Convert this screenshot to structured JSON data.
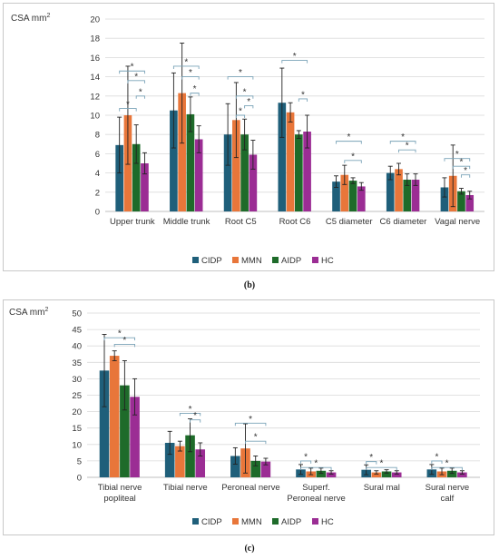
{
  "colors": {
    "CIDP": "#1f5f7a",
    "MMN": "#e8763a",
    "AIDP": "#1e6b2a",
    "HC": "#9b2d94",
    "bracket": "#7aa3b8",
    "grid": "#d9d9d9"
  },
  "panels": [
    {
      "id": "b",
      "caption": "(b)"
    },
    {
      "id": "c",
      "caption": "(c)"
    }
  ],
  "chart_data": [
    {
      "type": "bar",
      "ylabel_main": "CSA mm",
      "ylabel_sup": "2",
      "ylim": [
        0,
        20
      ],
      "yticks": [
        0,
        2,
        4,
        6,
        8,
        10,
        12,
        14,
        16,
        18,
        20
      ],
      "grid": true,
      "legend_position": "bottom",
      "categories": [
        [
          "Upper trunk"
        ],
        [
          "Middle trunk"
        ],
        [
          "Root C5"
        ],
        [
          "Root C6"
        ],
        [
          "C5 diameter"
        ],
        [
          "C6 diameter"
        ],
        [
          "Vagal nerve"
        ]
      ],
      "series": [
        {
          "name": "CIDP",
          "values": [
            6.9,
            10.5,
            8.0,
            11.3,
            3.1,
            4.0,
            2.5
          ],
          "errors": [
            2.9,
            3.9,
            3.2,
            3.6,
            0.6,
            0.7,
            1.0
          ]
        },
        {
          "name": "MMN",
          "values": [
            10.0,
            12.3,
            9.5,
            10.3,
            3.8,
            4.4,
            3.7
          ],
          "errors": [
            5.1,
            5.2,
            3.9,
            1.0,
            1.0,
            0.6,
            3.2
          ]
        },
        {
          "name": "AIDP",
          "values": [
            7.0,
            10.1,
            8.0,
            8.0,
            3.2,
            3.3,
            2.1
          ],
          "errors": [
            2.0,
            1.8,
            1.6,
            0.4,
            0.3,
            0.6,
            0.3
          ]
        },
        {
          "name": "HC",
          "values": [
            5.0,
            7.5,
            5.9,
            8.3,
            2.6,
            3.3,
            1.7
          ],
          "errors": [
            1.1,
            1.4,
            1.5,
            1.7,
            0.4,
            0.6,
            0.4
          ]
        }
      ],
      "brackets": [
        {
          "cat": 0,
          "from": 0,
          "to": 3,
          "y": 14.6,
          "label": "*"
        },
        {
          "cat": 0,
          "from": 1,
          "to": 3,
          "y": 13.6,
          "label": "*"
        },
        {
          "cat": 0,
          "from": 2,
          "to": 3,
          "y": 12.0,
          "label": "*"
        },
        {
          "cat": 0,
          "from": 0,
          "to": 2,
          "y": 10.7,
          "label": "*"
        },
        {
          "cat": 1,
          "from": 0,
          "to": 3,
          "y": 15.1,
          "label": "*"
        },
        {
          "cat": 1,
          "from": 1,
          "to": 3,
          "y": 14.0,
          "label": "*"
        },
        {
          "cat": 1,
          "from": 2,
          "to": 3,
          "y": 12.3,
          "label": "*"
        },
        {
          "cat": 2,
          "from": 0,
          "to": 3,
          "y": 14.0,
          "label": "*"
        },
        {
          "cat": 2,
          "from": 1,
          "to": 3,
          "y": 12.0,
          "label": "*"
        },
        {
          "cat": 2,
          "from": 2,
          "to": 3,
          "y": 11.0,
          "label": "*"
        },
        {
          "cat": 2,
          "from": 1,
          "to": 2,
          "y": 10.0,
          "label": "*"
        },
        {
          "cat": 3,
          "from": 0,
          "to": 3,
          "y": 15.7,
          "label": "*"
        },
        {
          "cat": 3,
          "from": 2,
          "to": 3,
          "y": 11.7,
          "label": "*"
        },
        {
          "cat": 4,
          "from": 0,
          "to": 3,
          "y": 7.3,
          "label": "*"
        },
        {
          "cat": 4,
          "from": 1,
          "to": 3,
          "y": 5.3,
          "label": "*"
        },
        {
          "cat": 5,
          "from": 0,
          "to": 3,
          "y": 7.3,
          "label": "*"
        },
        {
          "cat": 5,
          "from": 1,
          "to": 3,
          "y": 6.4,
          "label": "*"
        },
        {
          "cat": 6,
          "from": 0,
          "to": 3,
          "y": 5.5,
          "label": "*"
        },
        {
          "cat": 6,
          "from": 1,
          "to": 3,
          "y": 4.7,
          "label": "*"
        },
        {
          "cat": 6,
          "from": 2,
          "to": 3,
          "y": 3.8,
          "label": "*"
        }
      ]
    },
    {
      "type": "bar",
      "ylabel_main": "CSA mm",
      "ylabel_sup": "2",
      "ylim": [
        0,
        50
      ],
      "yticks": [
        0,
        5,
        10,
        15,
        20,
        25,
        30,
        35,
        40,
        45,
        50
      ],
      "grid": true,
      "legend_position": "bottom",
      "categories": [
        [
          "Tibial nerve",
          "popliteal"
        ],
        [
          "Tibial nerve"
        ],
        [
          "Peroneal nerve"
        ],
        [
          "Superf.",
          "Peroneal nerve"
        ],
        [
          "Sural mal"
        ],
        [
          "Sural nerve",
          "calf"
        ]
      ],
      "series": [
        {
          "name": "CIDP",
          "values": [
            32.5,
            10.5,
            6.5,
            2.4,
            2.3,
            2.4
          ],
          "errors": [
            11.0,
            3.5,
            2.5,
            1.5,
            1.5,
            1.5
          ]
        },
        {
          "name": "MMN",
          "values": [
            37.0,
            9.5,
            8.8,
            1.8,
            1.5,
            1.8
          ],
          "errors": [
            1.5,
            1.5,
            7.5,
            1.0,
            0.5,
            1.0
          ]
        },
        {
          "name": "AIDP",
          "values": [
            28.0,
            12.8,
            5.0,
            2.0,
            1.8,
            2.0
          ],
          "errors": [
            7.5,
            5.0,
            1.5,
            0.8,
            0.5,
            0.8
          ]
        },
        {
          "name": "HC",
          "values": [
            24.5,
            8.5,
            4.8,
            1.5,
            1.5,
            1.5
          ],
          "errors": [
            5.5,
            2.0,
            1.0,
            0.5,
            0.5,
            0.5
          ]
        }
      ],
      "brackets": [
        {
          "cat": 0,
          "from": 0,
          "to": 3,
          "y": 42.5,
          "label": "*"
        },
        {
          "cat": 0,
          "from": 1,
          "to": 3,
          "y": 40.5,
          "label": "*"
        },
        {
          "cat": 1,
          "from": 1,
          "to": 3,
          "y": 19.5,
          "label": "*"
        },
        {
          "cat": 1,
          "from": 2,
          "to": 3,
          "y": 17.5,
          "label": "*"
        },
        {
          "cat": 2,
          "from": 0,
          "to": 3,
          "y": 16.5,
          "label": "*"
        },
        {
          "cat": 2,
          "from": 1,
          "to": 3,
          "y": 11.0,
          "label": "*"
        },
        {
          "cat": 3,
          "from": 0,
          "to": 1,
          "y": 5.0,
          "label": "*"
        },
        {
          "cat": 3,
          "from": 0,
          "to": 3,
          "y": 3.0,
          "label": "*"
        },
        {
          "cat": 4,
          "from": 0,
          "to": 1,
          "y": 4.8,
          "label": "*"
        },
        {
          "cat": 4,
          "from": 0,
          "to": 3,
          "y": 3.0,
          "label": "*"
        },
        {
          "cat": 5,
          "from": 0,
          "to": 1,
          "y": 5.0,
          "label": "*"
        },
        {
          "cat": 5,
          "from": 0,
          "to": 3,
          "y": 3.0,
          "label": "*"
        }
      ]
    }
  ]
}
